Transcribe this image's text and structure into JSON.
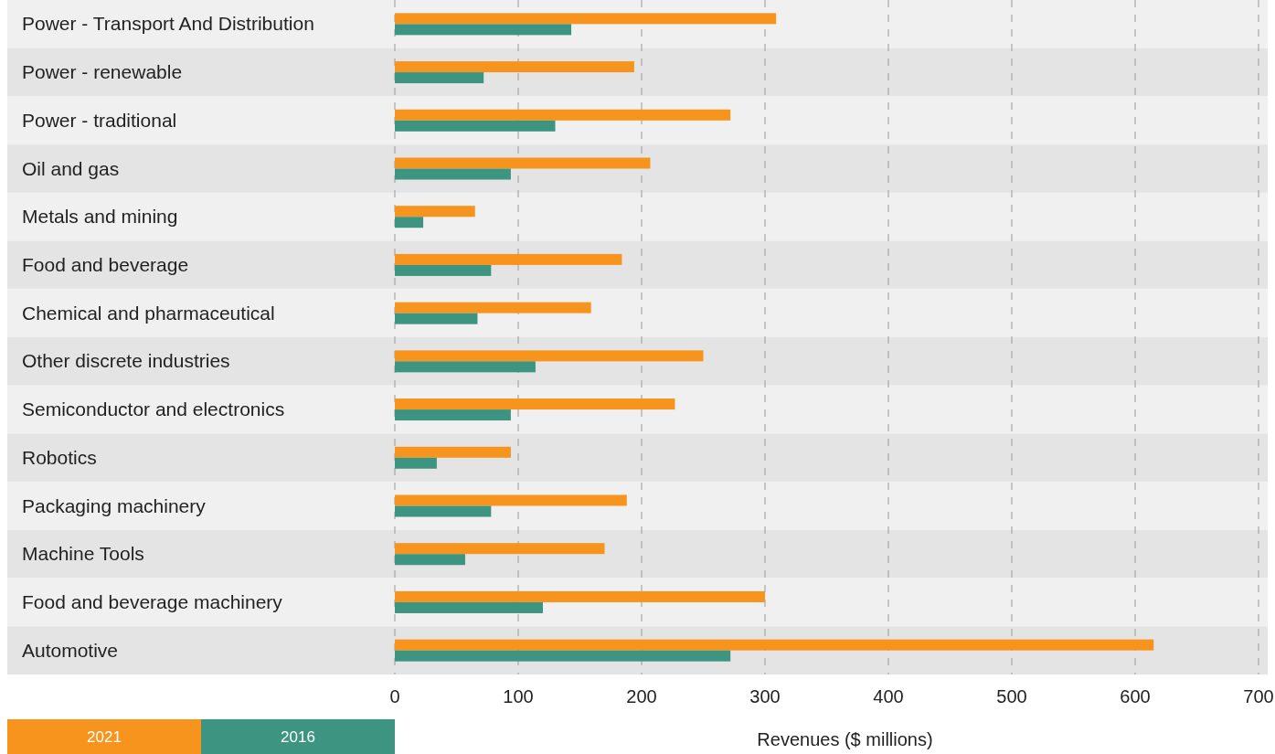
{
  "chart_data": {
    "type": "bar",
    "orientation": "horizontal",
    "xlabel": "Revenues ($ millions)",
    "categories": [
      "Power - Transport And Distribution",
      "Power - renewable",
      "Power - traditional",
      "Oil and gas",
      "Metals and mining",
      "Food and beverage",
      "Chemical and pharmaceutical",
      "Other discrete industries",
      "Semiconductor and electronics",
      "Robotics",
      "Packaging machinery",
      "Machine Tools",
      "Food and beverage machinery",
      "Automotive"
    ],
    "series": [
      {
        "name": "2021",
        "color": "#f7941d",
        "values": [
          309,
          194,
          272,
          207,
          65,
          184,
          159,
          250,
          227,
          94,
          188,
          170,
          300,
          615
        ]
      },
      {
        "name": "2016",
        "color": "#3d9480",
        "values": [
          143,
          72,
          130,
          94,
          23,
          78,
          67,
          114,
          94,
          34,
          78,
          57,
          120,
          272
        ]
      }
    ],
    "xlim": [
      0,
      700
    ],
    "xticks": [
      0,
      100,
      200,
      300,
      400,
      500,
      600,
      700
    ],
    "grid": "x",
    "legend": "bottom left"
  }
}
